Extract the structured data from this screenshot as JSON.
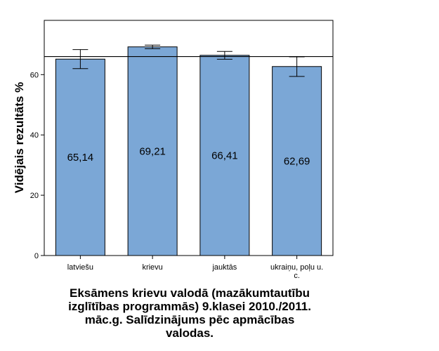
{
  "chart_data": {
    "type": "bar",
    "title_lines": [
      "Eksāmens krievu valodā (mazākumtautību",
      "izglītības programmās) 9.klasei 2010./2011.",
      "māc.g. Salīdzinājums pēc apmācības",
      "valodas."
    ],
    "xlabel": "",
    "ylabel": "Vidējais rezultāts %",
    "categories": [
      "latviešu",
      "krievu",
      "jauktās",
      "ukraiņu, poļu u. c."
    ],
    "category_label_lines": [
      [
        "latviešu"
      ],
      [
        "krievu"
      ],
      [
        "jauktās"
      ],
      [
        "ukraiņu, poļu u.",
        "c."
      ]
    ],
    "values": [
      65.14,
      69.21,
      66.41,
      62.69
    ],
    "data_labels": [
      "65,14",
      "69,21",
      "66,41",
      "62,69"
    ],
    "error_bars": [
      {
        "low": 62.0,
        "high": 68.3
      },
      {
        "low": 68.6,
        "high": 69.8
      },
      {
        "low": 65.1,
        "high": 67.7
      },
      {
        "low": 59.4,
        "high": 65.9
      }
    ],
    "reference_line": 66.0,
    "ylim": [
      0,
      78
    ],
    "yticks": [
      0,
      20,
      40,
      60
    ],
    "bar_color": "#7ba7d6",
    "grid": false
  }
}
